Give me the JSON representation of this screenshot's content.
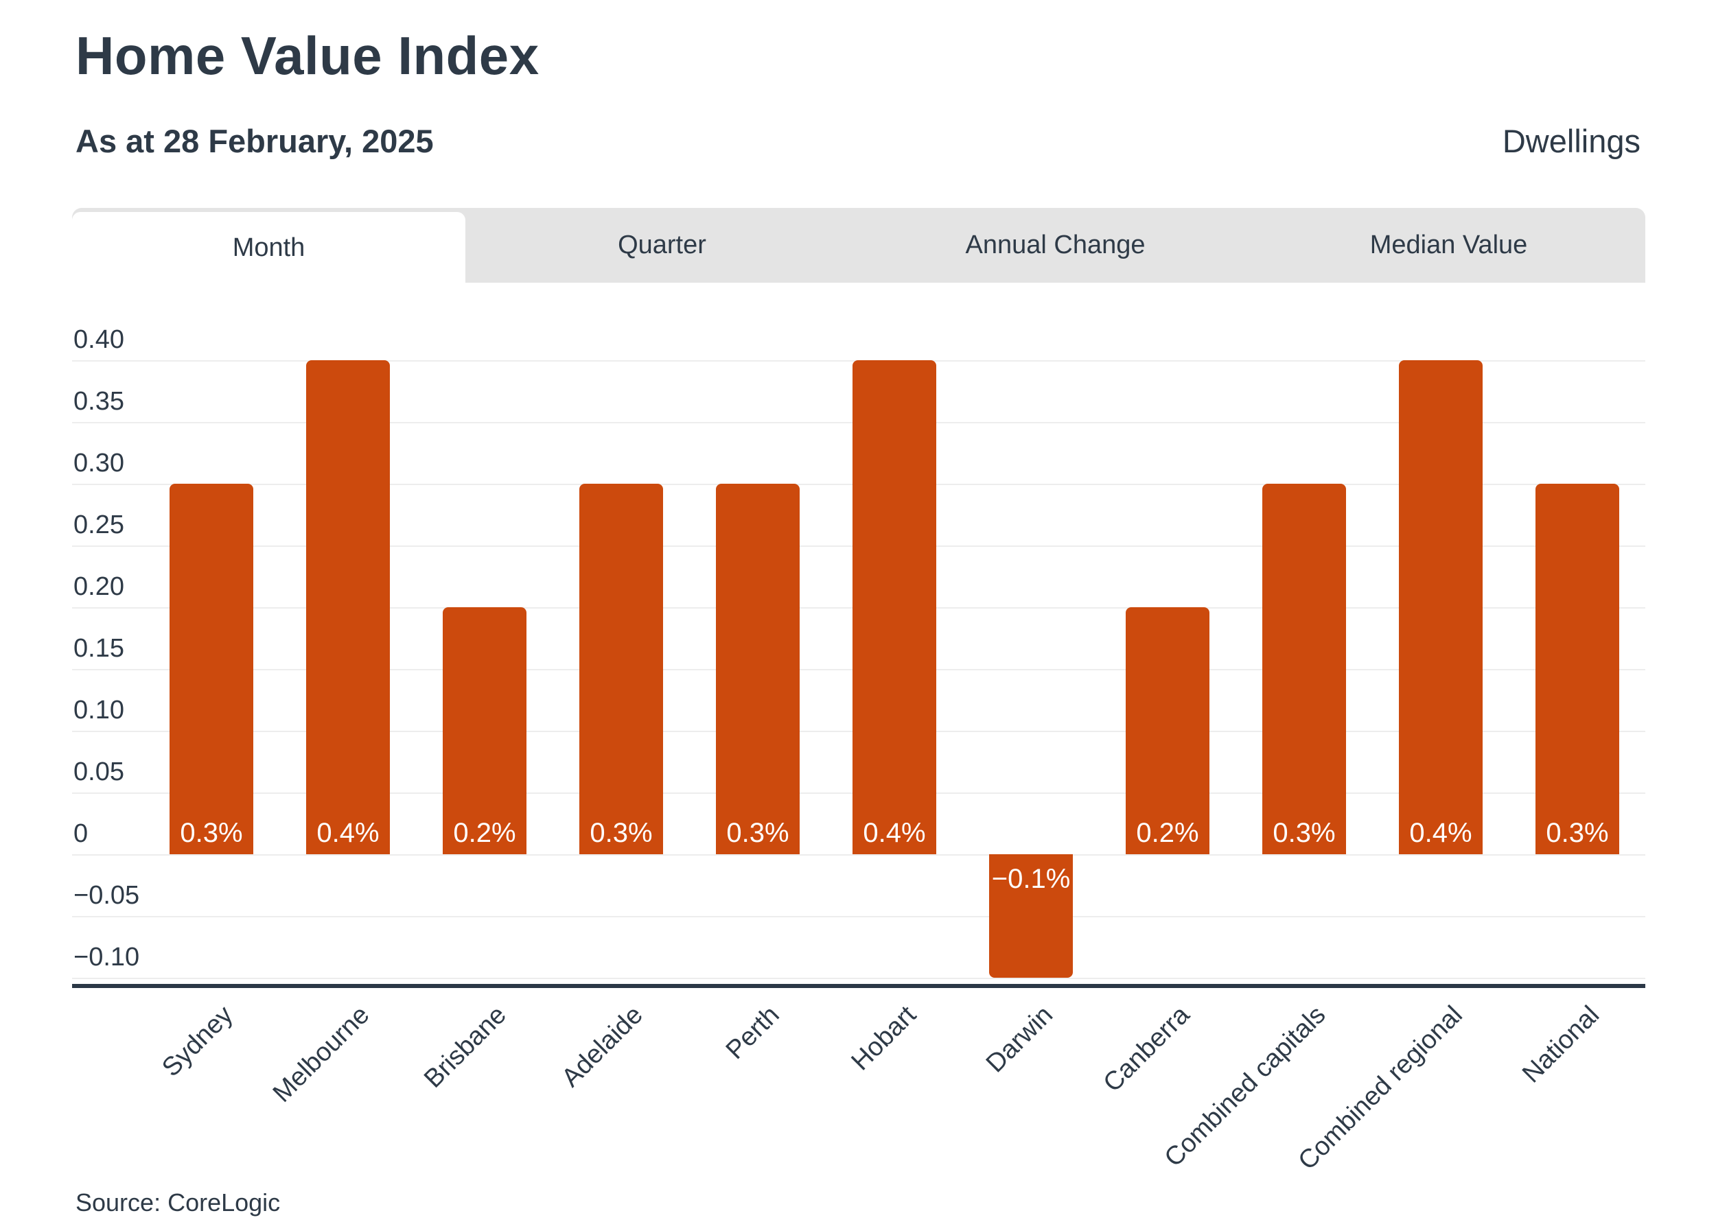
{
  "header": {
    "title": "Home Value Index",
    "subtitle": "As at 28 February, 2025",
    "series_label": "Dwellings"
  },
  "tabs": [
    {
      "label": "Month",
      "active": true
    },
    {
      "label": "Quarter",
      "active": false
    },
    {
      "label": "Annual Change",
      "active": false
    },
    {
      "label": "Median Value",
      "active": false
    }
  ],
  "chart_data": {
    "type": "bar",
    "title": "Home Value Index",
    "subtitle": "As at 28 February, 2025",
    "series_name": "Dwellings",
    "categories": [
      "Sydney",
      "Melbourne",
      "Brisbane",
      "Adelaide",
      "Perth",
      "Hobart",
      "Darwin",
      "Canberra",
      "Combined capitals",
      "Combined regional",
      "National"
    ],
    "values": [
      0.3,
      0.4,
      0.2,
      0.3,
      0.3,
      0.4,
      -0.1,
      0.2,
      0.3,
      0.4,
      0.3
    ],
    "bar_labels": [
      "0.3%",
      "0.4%",
      "0.2%",
      "0.3%",
      "0.3%",
      "0.4%",
      "−0.1%",
      "0.2%",
      "0.3%",
      "0.4%",
      "0.3%"
    ],
    "xlabel": "",
    "ylabel": "",
    "ylim": [
      -0.115,
      0.44
    ],
    "yticks": [
      {
        "value": 0.4,
        "label": "0.40"
      },
      {
        "value": 0.35,
        "label": "0.35"
      },
      {
        "value": 0.3,
        "label": "0.30"
      },
      {
        "value": 0.25,
        "label": "0.25"
      },
      {
        "value": 0.2,
        "label": "0.20"
      },
      {
        "value": 0.15,
        "label": "0.15"
      },
      {
        "value": 0.1,
        "label": "0.10"
      },
      {
        "value": 0.05,
        "label": "0.05"
      },
      {
        "value": 0,
        "label": "0"
      },
      {
        "value": -0.05,
        "label": "−0.05"
      },
      {
        "value": -0.1,
        "label": "−0.10"
      }
    ],
    "grid": true,
    "legend": false,
    "colors": {
      "bar": "#CC4A0D",
      "bar_label_text": "#FFFFFF",
      "text": "#2E3A47",
      "gridline": "#EDEDED",
      "axis_line": "#2B3846",
      "tabbar_background": "#E4E4E4",
      "active_tab_background": "#FFFFFF"
    }
  },
  "footer": {
    "source": "Source: CoreLogic"
  }
}
